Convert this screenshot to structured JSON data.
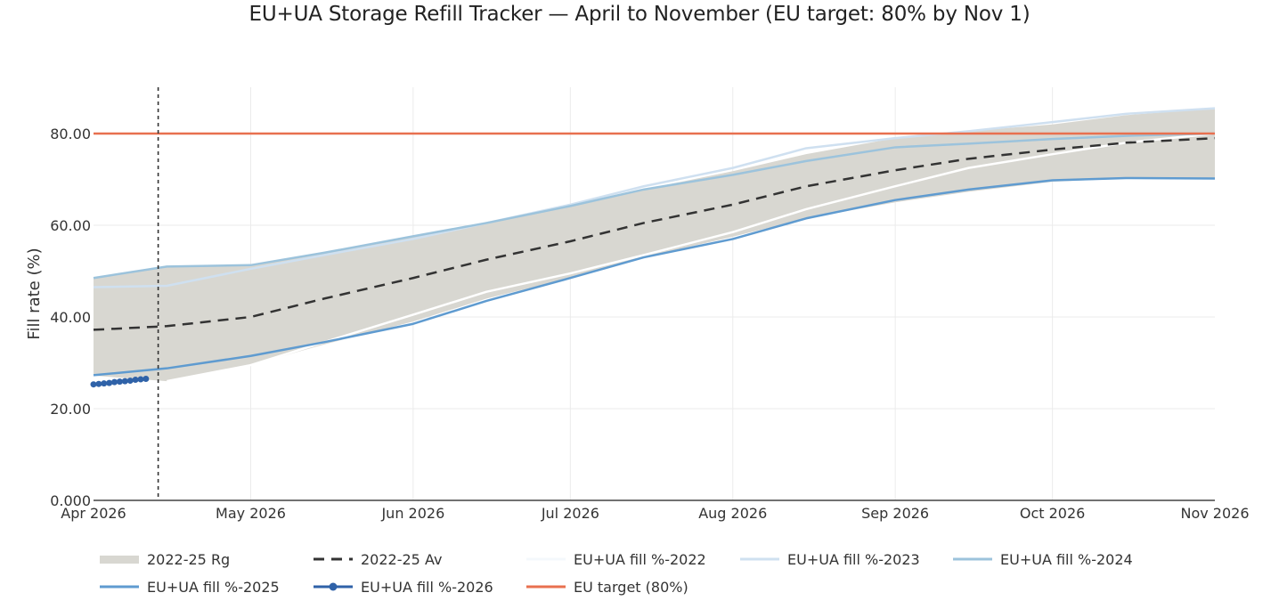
{
  "title": "EU+UA Storage Refill Tracker — April to November (EU target: 80% by Nov 1)",
  "axes": {
    "y_label": "Fill rate (%)",
    "y_ticks": [
      "0.000",
      "20.00",
      "40.00",
      "60.00",
      "80.00"
    ],
    "x_ticks": [
      "Apr 2026",
      "May 2026",
      "Jun 2026",
      "Jul 2026",
      "Aug 2026",
      "Sep 2026",
      "Oct 2026",
      "Nov 2026"
    ]
  },
  "legend": {
    "items": [
      {
        "label": "2022-25 Rg"
      },
      {
        "label": "2022-25 Av"
      },
      {
        "label": "EU+UA fill %-2022"
      },
      {
        "label": "EU+UA fill %-2023"
      },
      {
        "label": "EU+UA fill %-2024"
      },
      {
        "label": "EU+UA fill %-2025"
      },
      {
        "label": "EU+UA fill %-2026"
      },
      {
        "label": "EU target (80%)"
      }
    ]
  },
  "colors": {
    "range_fill": "#d8d7d1",
    "average": "#333333",
    "y2022": "#f4f8fc",
    "y2023": "#cfe0f0",
    "y2024": "#9cc3dc",
    "y2025": "#5f9bd0",
    "y2026": "#2f62a8",
    "target": "#e8704f",
    "today_line": "#333333",
    "grid": "#ebebeb"
  },
  "chart_data": {
    "type": "line",
    "title": "EU+UA Storage Refill Tracker — April to November (EU target: 80% by Nov 1)",
    "xlabel": "",
    "ylabel": "Fill rate (%)",
    "x_range": [
      "2026-04-01",
      "2026-11-01"
    ],
    "ylim": [
      0,
      90
    ],
    "grid": true,
    "legend_position": "bottom",
    "x": [
      "2026-04-01",
      "2026-04-15",
      "2026-05-01",
      "2026-05-15",
      "2026-06-01",
      "2026-06-15",
      "2026-07-01",
      "2026-07-15",
      "2026-08-01",
      "2026-08-15",
      "2026-09-01",
      "2026-09-15",
      "2026-10-01",
      "2026-10-15",
      "2026-11-01"
    ],
    "series": [
      {
        "name": "2022-25 Rg (upper)",
        "type": "area",
        "values": [
          48.5,
          51.0,
          51.3,
          54.0,
          57.6,
          60.5,
          64.2,
          67.8,
          71.8,
          75.5,
          79.0,
          80.5,
          82.0,
          84.0,
          85.5
        ]
      },
      {
        "name": "2022-25 Rg (lower)",
        "type": "area",
        "values": [
          27.2,
          26.0,
          29.5,
          34.0,
          39.0,
          44.0,
          48.5,
          53.0,
          57.5,
          61.5,
          65.0,
          67.3,
          69.5,
          70.2,
          70.2
        ]
      },
      {
        "name": "2022-25 Av",
        "values": [
          37.2,
          38.0,
          40.0,
          44.0,
          48.5,
          52.5,
          56.5,
          60.5,
          64.5,
          68.5,
          72.0,
          74.5,
          76.5,
          78.0,
          79.0
        ]
      },
      {
        "name": "EU+UA fill %-2022",
        "values": [
          null,
          26.0,
          29.5,
          34.5,
          40.5,
          45.5,
          49.5,
          53.5,
          58.5,
          63.5,
          68.5,
          72.5,
          75.5,
          78.0,
          80.0
        ]
      },
      {
        "name": "EU+UA fill %-2023",
        "values": [
          46.5,
          46.8,
          50.5,
          53.5,
          57.0,
          60.5,
          64.5,
          68.5,
          72.5,
          76.8,
          79.0,
          80.5,
          82.5,
          84.3,
          85.5
        ]
      },
      {
        "name": "EU+UA fill %-2024",
        "values": [
          48.5,
          51.0,
          51.3,
          54.0,
          57.6,
          60.5,
          64.2,
          67.8,
          71.0,
          74.0,
          77.0,
          77.8,
          78.8,
          79.5,
          80.0
        ]
      },
      {
        "name": "EU+UA fill %-2025",
        "values": [
          27.3,
          28.8,
          31.5,
          34.5,
          38.5,
          43.5,
          48.5,
          53.0,
          57.0,
          61.5,
          65.5,
          67.8,
          69.8,
          70.3,
          70.2
        ]
      },
      {
        "name": "EU+UA fill %-2026",
        "x": [
          "2026-04-01",
          "2026-04-02",
          "2026-04-03",
          "2026-04-04",
          "2026-04-05",
          "2026-04-06",
          "2026-04-07",
          "2026-04-08",
          "2026-04-09",
          "2026-04-10",
          "2026-04-11"
        ],
        "values": [
          25.3,
          25.4,
          25.5,
          25.6,
          25.8,
          25.9,
          26.0,
          26.1,
          26.3,
          26.4,
          26.5
        ]
      },
      {
        "name": "EU target (80%)",
        "values": [
          80,
          80,
          80,
          80,
          80,
          80,
          80,
          80,
          80,
          80,
          80,
          80,
          80,
          80,
          80
        ]
      }
    ],
    "annotations": [
      {
        "type": "vertical_dotted_line",
        "x": "2026-04-13",
        "meaning": "current date marker"
      }
    ]
  }
}
